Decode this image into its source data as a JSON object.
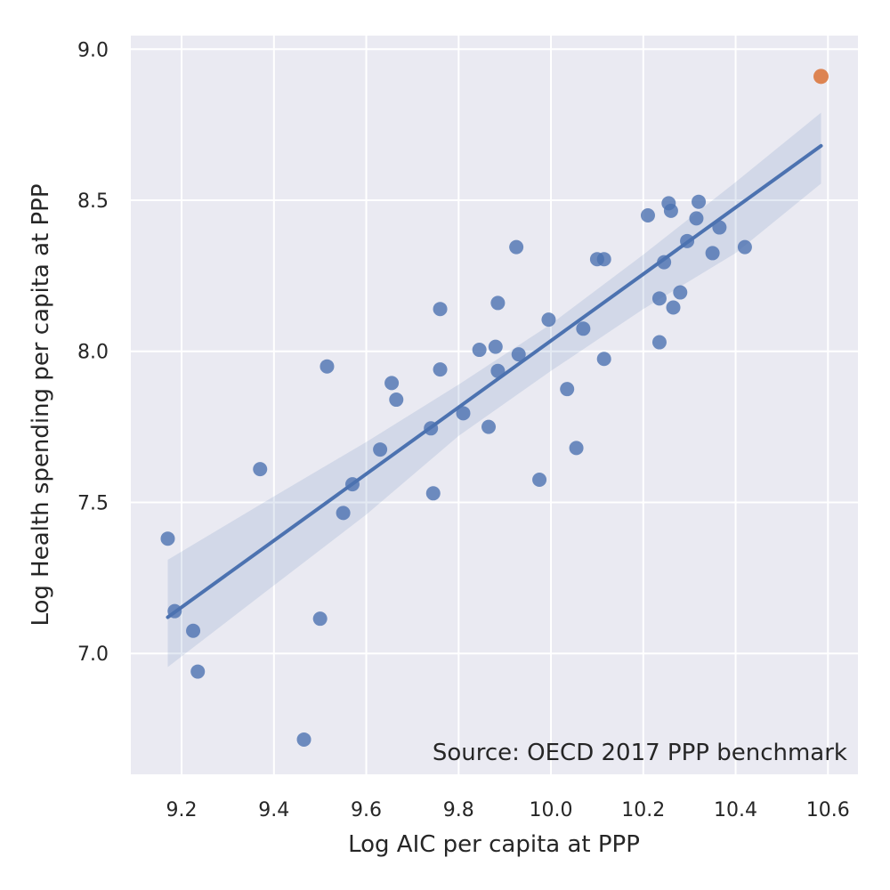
{
  "chart_data": {
    "type": "scatter",
    "title": "",
    "xlabel": "Log AIC per capita at PPP",
    "ylabel": "Log Health spending per capita at PPP",
    "annotation": "Source: OECD 2017 PPP benchmark",
    "xlim": [
      9.09,
      10.665
    ],
    "ylim": [
      6.6,
      9.045
    ],
    "xticks": [
      9.2,
      9.4,
      9.6,
      9.8,
      10.0,
      10.2,
      10.4,
      10.6
    ],
    "xtick_labels": [
      "9.2",
      "9.4",
      "9.6",
      "9.8",
      "10.0",
      "10.2",
      "10.4",
      "10.6"
    ],
    "yticks": [
      7.0,
      7.5,
      8.0,
      8.5,
      9.0
    ],
    "ytick_labels": [
      "7.0",
      "7.5",
      "8.0",
      "8.5",
      "9.0"
    ],
    "grid": true,
    "colors": {
      "background": "#eaeaf2",
      "grid": "#ffffff",
      "points": "#4c72b0",
      "highlight": "#dd8452",
      "band": "#4c72b0"
    },
    "series": [
      {
        "points": [
          [
            9.17,
            7.38
          ],
          [
            9.185,
            7.14
          ],
          [
            9.225,
            7.075
          ],
          [
            9.235,
            6.94
          ],
          [
            9.37,
            7.61
          ],
          [
            9.465,
            6.715
          ],
          [
            9.5,
            7.115
          ],
          [
            9.515,
            7.95
          ],
          [
            9.55,
            7.465
          ],
          [
            9.57,
            7.56
          ],
          [
            9.63,
            7.675
          ],
          [
            9.655,
            7.895
          ],
          [
            9.665,
            7.84
          ],
          [
            9.74,
            7.745
          ],
          [
            9.745,
            7.53
          ],
          [
            9.76,
            8.14
          ],
          [
            9.76,
            7.94
          ],
          [
            9.81,
            7.795
          ],
          [
            9.845,
            8.005
          ],
          [
            9.865,
            7.75
          ],
          [
            9.88,
            8.015
          ],
          [
            9.885,
            8.16
          ],
          [
            9.885,
            7.935
          ],
          [
            9.925,
            8.345
          ],
          [
            9.93,
            7.99
          ],
          [
            9.975,
            7.575
          ],
          [
            9.995,
            8.105
          ],
          [
            10.035,
            7.875
          ],
          [
            10.055,
            7.68
          ],
          [
            10.07,
            8.075
          ],
          [
            10.1,
            8.305
          ],
          [
            10.115,
            8.305
          ],
          [
            10.115,
            7.975
          ],
          [
            10.21,
            8.45
          ],
          [
            10.235,
            8.175
          ],
          [
            10.235,
            8.03
          ],
          [
            10.245,
            8.295
          ],
          [
            10.255,
            8.49
          ],
          [
            10.26,
            8.465
          ],
          [
            10.265,
            8.145
          ],
          [
            10.28,
            8.195
          ],
          [
            10.295,
            8.365
          ],
          [
            10.315,
            8.44
          ],
          [
            10.32,
            8.495
          ],
          [
            10.35,
            8.325
          ],
          [
            10.365,
            8.41
          ],
          [
            10.42,
            8.345
          ]
        ]
      },
      {
        "points": [
          [
            10.585,
            8.91
          ]
        ]
      }
    ],
    "regression": {
      "x_range": [
        9.17,
        10.585
      ],
      "y_range": [
        7.12,
        8.68
      ],
      "ci_band": {
        "x": [
          9.17,
          9.4,
          9.6,
          9.8,
          10.0,
          10.2,
          10.4,
          10.585
        ],
        "lower": [
          6.955,
          7.225,
          7.46,
          7.72,
          7.935,
          8.14,
          8.325,
          8.555
        ],
        "upper": [
          7.31,
          7.52,
          7.7,
          7.89,
          8.09,
          8.32,
          8.56,
          8.79
        ]
      }
    }
  }
}
